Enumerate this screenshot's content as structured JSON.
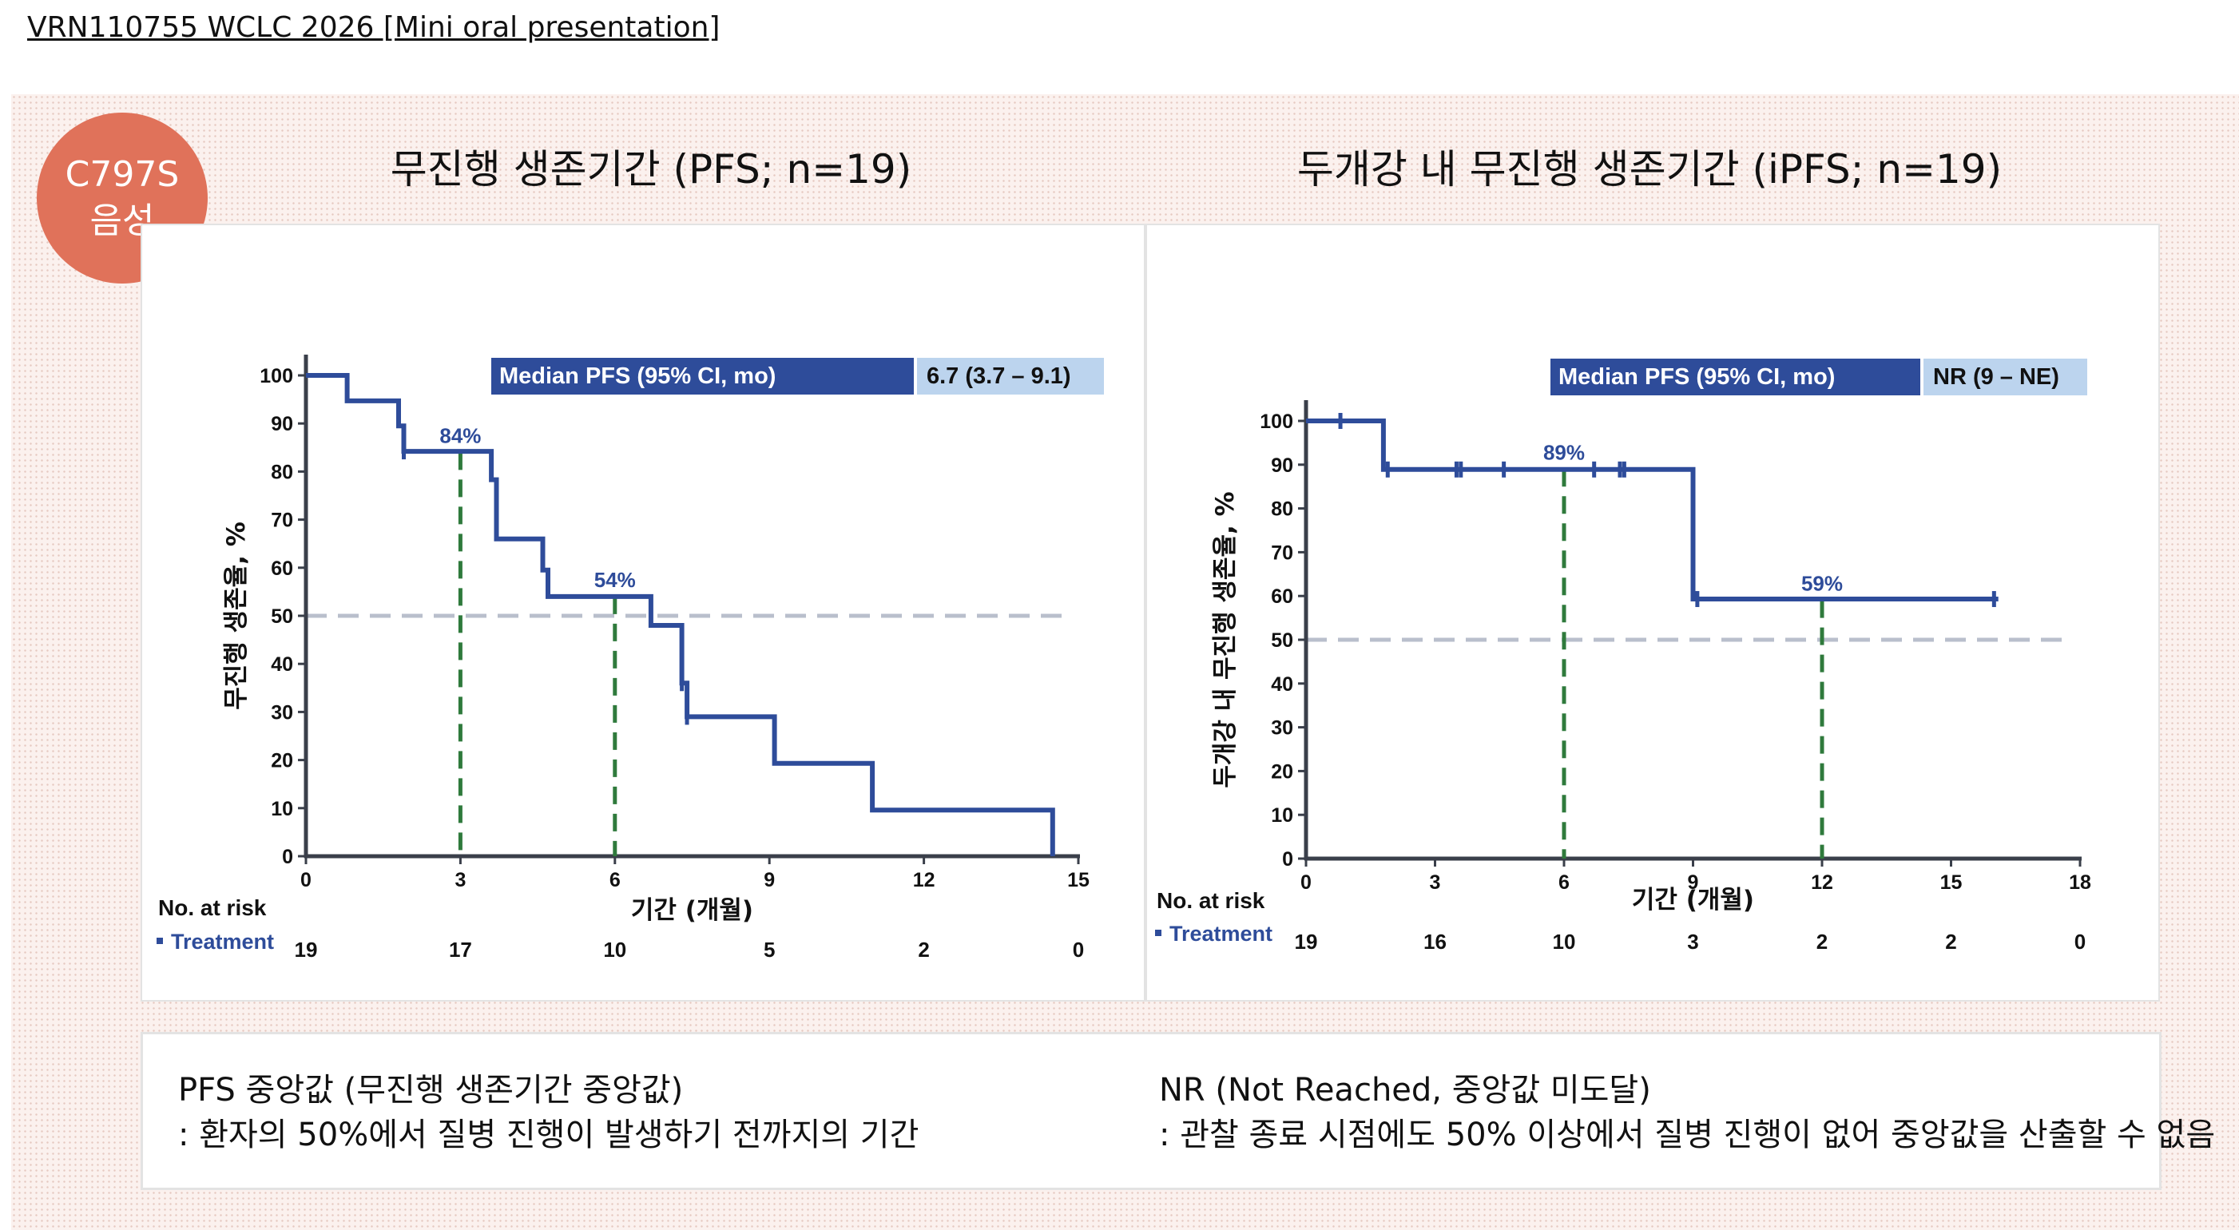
{
  "header": {
    "title": "VRN110755 WCLC 2026 [Mini oral presentation]"
  },
  "badge": {
    "line1": "C797S",
    "line2": "음성",
    "color": "#e0725a"
  },
  "colors": {
    "line": "#2e4c9a",
    "median_line": "#2f7a3c",
    "ref_line": "#b9bfcc",
    "label_dark": "#2e4c9a",
    "label_light": "#bcd4ee"
  },
  "chart_data": [
    {
      "type": "line",
      "title": "무진행 생존기간 (PFS; n=19)",
      "xlabel": "기간 (개월)",
      "ylabel": "무진행 생존율, %",
      "xlim": [
        0,
        15
      ],
      "ylim": [
        0,
        100
      ],
      "xticks": [
        0,
        3,
        6,
        9,
        12,
        15
      ],
      "yticks": [
        0,
        10,
        20,
        30,
        40,
        50,
        60,
        70,
        80,
        90,
        100
      ],
      "reference_line": 50,
      "median_box": {
        "label": "Median PFS (95% CI, mo)",
        "value": "6.7 (3.7 – 9.1)"
      },
      "series": [
        {
          "name": "Treatment",
          "steps": [
            [
              0,
              100
            ],
            [
              0.8,
              100
            ],
            [
              0.8,
              94.7
            ],
            [
              1.8,
              94.7
            ],
            [
              1.8,
              89.5
            ],
            [
              1.9,
              89.5
            ],
            [
              1.9,
              84.2
            ],
            [
              3.6,
              84.2
            ],
            [
              3.6,
              78.3
            ],
            [
              3.7,
              78.3
            ],
            [
              3.7,
              66
            ],
            [
              4.6,
              66
            ],
            [
              4.6,
              59.5
            ],
            [
              4.7,
              59.5
            ],
            [
              4.7,
              54
            ],
            [
              6.7,
              54
            ],
            [
              6.7,
              48
            ],
            [
              7.3,
              48
            ],
            [
              7.3,
              36
            ],
            [
              7.4,
              36
            ],
            [
              7.4,
              29
            ],
            [
              9.1,
              29
            ],
            [
              9.1,
              19.3
            ],
            [
              11.0,
              19.3
            ],
            [
              11.0,
              9.6
            ],
            [
              14.5,
              9.6
            ],
            [
              14.5,
              0
            ]
          ],
          "censors": [
            [
              1.9,
              84.2
            ],
            [
              7.3,
              36
            ],
            [
              7.4,
              29
            ]
          ]
        }
      ],
      "annotations": [
        {
          "x": 3,
          "y": 84,
          "label": "84%"
        },
        {
          "x": 6,
          "y": 54,
          "label": "54%"
        }
      ],
      "risk_table": {
        "label": "No. at risk",
        "group": "Treatment",
        "x": [
          0,
          3,
          6,
          9,
          12,
          15
        ],
        "counts": [
          "19",
          "17",
          "10",
          "5",
          "2",
          "0"
        ]
      }
    },
    {
      "type": "line",
      "title": "두개강 내 무진행 생존기간 (iPFS; n=19)",
      "xlabel": "기간 (개월)",
      "ylabel": "두개강 내 무진행 생존율, %",
      "xlim": [
        0,
        18
      ],
      "ylim": [
        0,
        100
      ],
      "xticks": [
        0,
        3,
        6,
        9,
        12,
        15,
        18
      ],
      "yticks": [
        0,
        10,
        20,
        30,
        40,
        50,
        60,
        70,
        80,
        90,
        100
      ],
      "reference_line": 50,
      "median_box": {
        "label": "Median PFS (95% CI, mo)",
        "value": "NR (9 – NE)"
      },
      "series": [
        {
          "name": "Treatment",
          "steps": [
            [
              0,
              100
            ],
            [
              1.8,
              100
            ],
            [
              1.8,
              88.9
            ],
            [
              9.0,
              88.9
            ],
            [
              9.0,
              59.3
            ],
            [
              16.1,
              59.3
            ]
          ],
          "censors": [
            [
              0.8,
              100
            ],
            [
              1.9,
              88.9
            ],
            [
              3.5,
              88.9
            ],
            [
              3.6,
              88.9
            ],
            [
              4.6,
              88.9
            ],
            [
              6.7,
              88.9
            ],
            [
              7.3,
              88.9
            ],
            [
              7.4,
              88.9
            ],
            [
              9.1,
              59.3
            ],
            [
              16.0,
              59.3
            ]
          ]
        }
      ],
      "annotations": [
        {
          "x": 6,
          "y": 89,
          "label": "89%"
        },
        {
          "x": 12,
          "y": 59,
          "label": "59%"
        }
      ],
      "risk_table": {
        "label": "No. at risk",
        "group": "Treatment",
        "x": [
          0,
          3,
          6,
          9,
          12,
          15,
          18
        ],
        "counts": [
          "19",
          "16",
          "10",
          "3",
          "2",
          "2",
          "0"
        ]
      }
    }
  ],
  "definitions": {
    "pfs": {
      "title": "PFS 중앙값 (무진행 생존기간 중앙값)",
      "desc": ": 환자의 50%에서 질병 진행이 발생하기 전까지의 기간"
    },
    "nr": {
      "title": "NR (Not Reached, 중앙값 미도달)",
      "desc": ": 관찰 종료 시점에도 50% 이상에서 질병 진행이 없어 중앙값을 산출할 수 없음"
    }
  }
}
